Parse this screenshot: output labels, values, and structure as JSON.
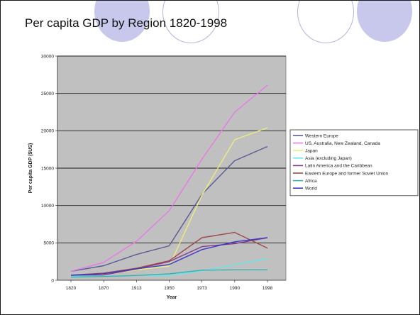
{
  "slide": {
    "title": "Per capita GDP by Region 1820-1998"
  },
  "chart_data": {
    "type": "line",
    "title": "",
    "xlabel": "Year",
    "ylabel": "Per capita GDP ($US)",
    "categories": [
      "1820",
      "1870",
      "1913",
      "1950",
      "1973",
      "1990",
      "1998"
    ],
    "yticks": [
      "0",
      "5000",
      "10000",
      "15000",
      "20000",
      "25000",
      "30000"
    ],
    "ylim": [
      0,
      30000
    ],
    "grid": true,
    "legend_position": "right",
    "plot_background": "#c0c0c0",
    "series": [
      {
        "name": "Western Europe",
        "color": "#5a5a96",
        "values": [
          1200,
          1950,
          3450,
          4600,
          11500,
          16000,
          17900
        ]
      },
      {
        "name": "US, Australia, New Zealand, Canada",
        "color": "#e878e8",
        "values": [
          1200,
          2400,
          5200,
          9300,
          16200,
          22500,
          26100
        ]
      },
      {
        "name": "Japan",
        "color": "#ecec7c",
        "values": [
          670,
          740,
          1400,
          1900,
          11400,
          18800,
          20400
        ]
      },
      {
        "name": "Asia (excluding Japan)",
        "color": "#66e8e8",
        "values": [
          580,
          550,
          650,
          640,
          1250,
          2100,
          2900
        ]
      },
      {
        "name": "Latin America and the Caribbean",
        "color": "#8a3a8a",
        "values": [
          670,
          700,
          1500,
          2500,
          4500,
          4900,
          5700
        ]
      },
      {
        "name": "Eastern Europe and former Soviet Union",
        "color": "#9c4a4a",
        "values": [
          680,
          950,
          1600,
          2600,
          5700,
          6400,
          4300
        ]
      },
      {
        "name": "Africa",
        "color": "#3ab0b0",
        "values": [
          420,
          500,
          640,
          850,
          1350,
          1400,
          1400
        ]
      },
      {
        "name": "World",
        "color": "#3a3ac8",
        "values": [
          660,
          870,
          1530,
          2100,
          4100,
          5150,
          5700
        ]
      }
    ]
  }
}
